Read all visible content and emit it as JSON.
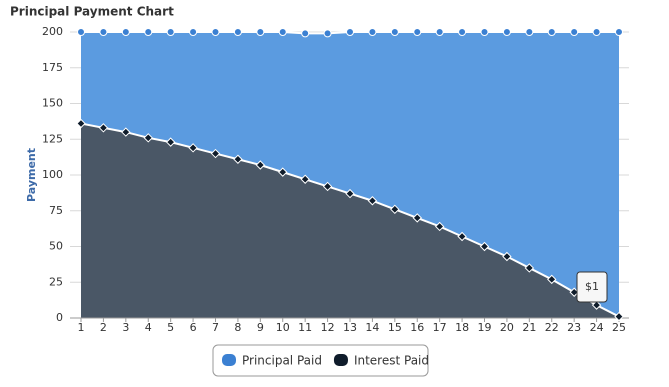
{
  "chart_data": {
    "type": "stacked-area",
    "title": "Principal Payment Chart",
    "y_label": "Payment",
    "categories": [
      1,
      2,
      3,
      4,
      5,
      6,
      7,
      8,
      9,
      10,
      11,
      12,
      13,
      14,
      15,
      16,
      17,
      18,
      19,
      20,
      21,
      22,
      23,
      24,
      25
    ],
    "series": [
      {
        "name": "Interest Paid",
        "color": "#4a5766",
        "marker_color": "#0f1c2b",
        "values": [
          136,
          133,
          130,
          126,
          123,
          119,
          115,
          111,
          107,
          102,
          97,
          92,
          87,
          82,
          76,
          70,
          64,
          57,
          50,
          43,
          35,
          27,
          18,
          9,
          1
        ],
        "value_labels": [
          null,
          null,
          null,
          null,
          null,
          null,
          null,
          null,
          null,
          null,
          null,
          null,
          null,
          null,
          null,
          null,
          null,
          null,
          null,
          null,
          null,
          null,
          null,
          null,
          "$1"
        ]
      },
      {
        "name": "Principal Paid",
        "color": "#5b9be0",
        "marker_color": "#3b80d2",
        "values": [
          64,
          67,
          70,
          74,
          77,
          81,
          85,
          89,
          93,
          98,
          102,
          107,
          113,
          118,
          124,
          130,
          136,
          143,
          150,
          157,
          165,
          173,
          182,
          191,
          199
        ]
      }
    ],
    "ylim": [
      0,
      200
    ],
    "yticks": [
      0,
      25,
      50,
      75,
      100,
      125,
      150,
      175,
      200
    ],
    "grid": true
  }
}
